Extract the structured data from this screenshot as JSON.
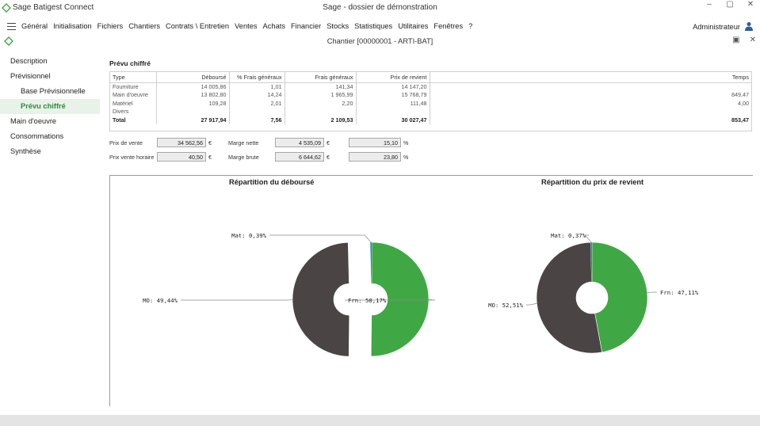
{
  "window": {
    "app_title": "Sage Batigest Connect",
    "doc_title": "Sage - dossier de démonstration",
    "chantier_title": "Chantier [00000001  - ARTI-BAT]"
  },
  "menu": {
    "items": [
      "Général",
      "Initialisation",
      "Fichiers",
      "Chantiers",
      "Contrats \\ Entretien",
      "Ventes",
      "Achats",
      "Financier",
      "Stocks",
      "Statistiques",
      "Utilitaires",
      "Fenêtres",
      "?"
    ],
    "user": "Administrateur"
  },
  "sidebar": {
    "items": [
      {
        "label": "Description"
      },
      {
        "label": "Prévisionnel"
      },
      {
        "label": "Base Prévisionnelle"
      },
      {
        "label": "Prévu chiffré"
      },
      {
        "label": "Main d'oeuvre"
      },
      {
        "label": "Consommations"
      },
      {
        "label": "Synthèse"
      }
    ]
  },
  "section_title": "Prévu chiffré",
  "table": {
    "headers": [
      "Type",
      "Déboursé",
      "% Frais généraux",
      "Frais généraux",
      "Prix de revient",
      "Temps"
    ],
    "rows": [
      [
        "Fourniture",
        "14 005,86",
        "1,01",
        "141,34",
        "14 147,20",
        ""
      ],
      [
        "Main d'oeuvre",
        "13 802,80",
        "14,24",
        "1 965,99",
        "15 768,79",
        "849,47"
      ],
      [
        "Matériel",
        "109,28",
        "2,01",
        "2,20",
        "111,48",
        "4,00"
      ],
      [
        "Divers",
        "",
        "",
        "",
        "",
        ""
      ]
    ],
    "total": [
      "Total",
      "27 917,94",
      "7,56",
      "2 109,53",
      "30 027,47",
      "853,47"
    ]
  },
  "form": {
    "prix_vente_label": "Prix de vente",
    "prix_vente_value": "34 562,56",
    "prix_vente_unit": "€",
    "prix_horaire_label": "Prix vente horaire",
    "prix_horaire_value": "40,50",
    "prix_horaire_unit": "€",
    "marge_nette_label": "Marge nette",
    "marge_nette_value": "4 535,09",
    "marge_nette_unit": "€",
    "marge_nette_pct": "15,10",
    "marge_nette_pct_unit": "%",
    "marge_brute_label": "Marge brute",
    "marge_brute_value": "6 644,62",
    "marge_brute_unit": "€",
    "marge_brute_pct": "23,80",
    "marge_brute_pct_unit": "%"
  },
  "colors": {
    "mo": "#4a4444",
    "frn": "#3fa844",
    "mat": "#2d7fd1",
    "accent": "#2e8b3a"
  },
  "chart_data": [
    {
      "type": "pie",
      "title": "Répartition du déboursé",
      "slices": [
        {
          "label": "Frn: 50,17%",
          "value": 50.17,
          "exploded": false
        },
        {
          "label": "MO: 49,44%",
          "value": 49.44,
          "exploded": true
        },
        {
          "label": "Mat: 0,39%",
          "value": 0.39,
          "exploded": false
        }
      ]
    },
    {
      "type": "pie",
      "title": "Répartition du prix de revient",
      "slices": [
        {
          "label": "Frn: 47,11%",
          "value": 47.11
        },
        {
          "label": "MO: 52,51%",
          "value": 52.51
        },
        {
          "label": "Mat: 0,37%",
          "value": 0.37
        }
      ]
    }
  ]
}
